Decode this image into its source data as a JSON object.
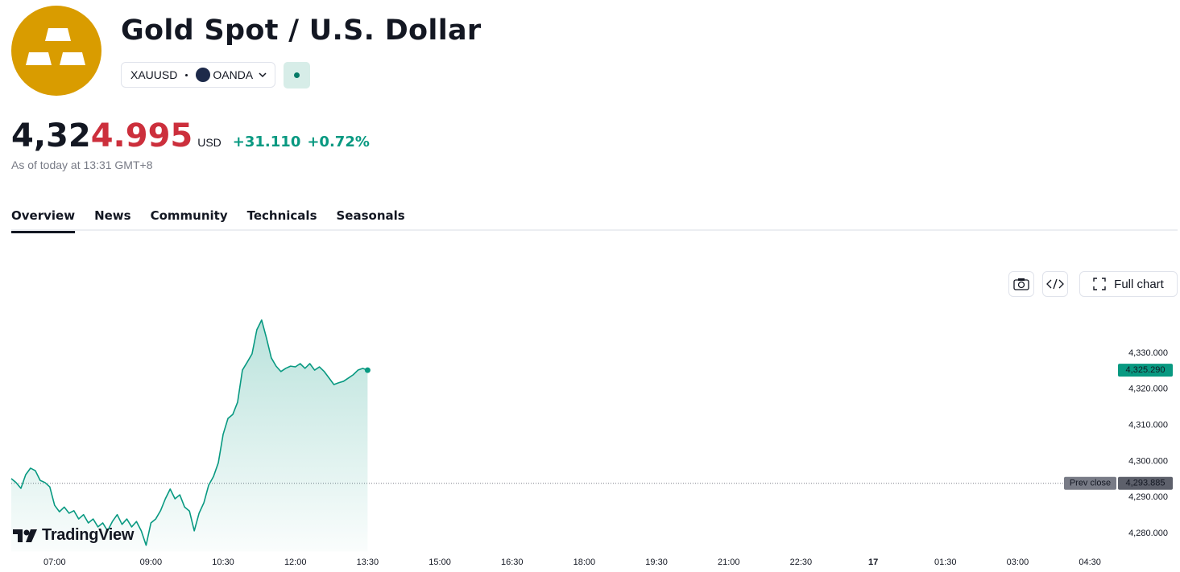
{
  "header": {
    "title": "Gold Spot / U.S. Dollar",
    "symbol": "XAUUSD",
    "exchange": "OANDA",
    "price_prefix": "4,32",
    "price_suffix": "4.995",
    "currency": "USD",
    "change": "+31.110",
    "change_percent": "+0.72%",
    "as_of": "As of today at 13:31 GMT+8"
  },
  "tabs": [
    "Overview",
    "News",
    "Community",
    "Technicals",
    "Seasonals"
  ],
  "toolbar": {
    "full_chart": "Full chart"
  },
  "watermark": "TradingView",
  "chart_data": {
    "type": "area",
    "color": "#089981",
    "grid": false,
    "x": [
      6.1,
      6.2,
      6.3,
      6.4,
      6.5,
      6.6,
      6.7,
      6.8,
      6.9,
      7.0,
      7.1,
      7.2,
      7.3,
      7.4,
      7.5,
      7.6,
      7.7,
      7.8,
      7.9,
      8.0,
      8.1,
      8.2,
      8.3,
      8.4,
      8.5,
      8.6,
      8.7,
      8.8,
      8.9,
      9.0,
      9.1,
      9.2,
      9.3,
      9.4,
      9.5,
      9.6,
      9.7,
      9.8,
      9.9,
      10.0,
      10.1,
      10.2,
      10.3,
      10.4,
      10.5,
      10.6,
      10.7,
      10.8,
      10.9,
      11.0,
      11.1,
      11.2,
      11.3,
      11.4,
      11.5,
      11.6,
      11.7,
      11.8,
      11.9,
      12.0,
      12.1,
      12.2,
      12.3,
      12.4,
      12.5,
      12.6,
      12.7,
      12.8,
      12.9,
      13.0,
      13.1,
      13.2,
      13.3,
      13.4,
      13.5
    ],
    "values": [
      4295.2,
      4294.1,
      4292.5,
      4296.3,
      4298.1,
      4297.4,
      4294.7,
      4294.1,
      4292.9,
      4287.8,
      4286.0,
      4287.3,
      4285.6,
      4286.3,
      4284.0,
      4285.2,
      4282.9,
      4284.0,
      4281.8,
      4282.9,
      4280.7,
      4283.3,
      4285.2,
      4282.5,
      4284.0,
      4281.8,
      4283.3,
      4280.7,
      4276.7,
      4282.9,
      4284.0,
      4286.3,
      4289.6,
      4292.3,
      4289.6,
      4290.7,
      4287.3,
      4286.2,
      4280.7,
      4285.6,
      4288.5,
      4293.4,
      4295.8,
      4299.6,
      4307.5,
      4311.9,
      4313.0,
      4316.4,
      4325.3,
      4327.5,
      4329.8,
      4336.5,
      4339.2,
      4334.2,
      4328.7,
      4326.4,
      4324.9,
      4325.8,
      4326.4,
      4326.2,
      4327.1,
      4325.8,
      4327.1,
      4325.3,
      4326.2,
      4324.9,
      4323.1,
      4321.3,
      4321.8,
      4322.2,
      4323.1,
      4324.0,
      4325.3,
      4325.8,
      4325.29
    ],
    "xlim": [
      6.1,
      28.95
    ],
    "xticks": [
      {
        "value": 7,
        "label": "07:00"
      },
      {
        "value": 9,
        "label": "09:00"
      },
      {
        "value": 10.5,
        "label": "10:30"
      },
      {
        "value": 12,
        "label": "12:00"
      },
      {
        "value": 13.5,
        "label": "13:30"
      },
      {
        "value": 15,
        "label": "15:00"
      },
      {
        "value": 16.5,
        "label": "16:30"
      },
      {
        "value": 18,
        "label": "18:00"
      },
      {
        "value": 19.5,
        "label": "19:30"
      },
      {
        "value": 21,
        "label": "21:00"
      },
      {
        "value": 22.5,
        "label": "22:30"
      },
      {
        "value": 24,
        "label": "17"
      },
      {
        "value": 25.5,
        "label": "01:30"
      },
      {
        "value": 27,
        "label": "03:00"
      },
      {
        "value": 28.5,
        "label": "04:30"
      }
    ],
    "ylim": [
      4275,
      4343
    ],
    "yticks": [
      {
        "value": 4280,
        "label": "4,280.000"
      },
      {
        "value": 4290,
        "label": "4,290.000"
      },
      {
        "value": 4300,
        "label": "4,300.000"
      },
      {
        "value": 4310,
        "label": "4,310.000"
      },
      {
        "value": 4320,
        "label": "4,320.000"
      },
      {
        "value": 4330,
        "label": "4,330.000"
      }
    ],
    "last_price": {
      "value": 4325.29,
      "label": "4,325.290"
    },
    "prev_close": {
      "name": "Prev close",
      "value": 4293.885,
      "label": "4,293.885"
    }
  }
}
